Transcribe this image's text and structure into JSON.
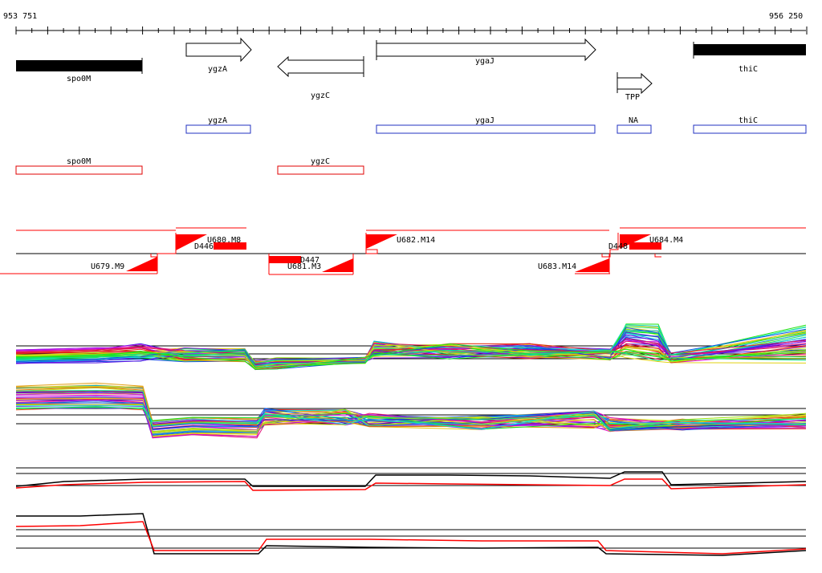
{
  "coords": {
    "start": "953 751",
    "end": "956 250"
  },
  "colors": {
    "feature_box": "#2030c0",
    "antisense_box": "#e00000",
    "segment": "#ff0000",
    "axis": "#000000"
  },
  "genes": [
    {
      "name": "spo0M",
      "kind": "solid-bar"
    },
    {
      "name": "ygzA",
      "kind": "arrow-right"
    },
    {
      "name": "ygzC",
      "kind": "arrow-left"
    },
    {
      "name": "ygaJ",
      "kind": "arrow-right"
    },
    {
      "name": "TPP",
      "kind": "arrow-right"
    },
    {
      "name": "thiC",
      "kind": "solid-bar"
    }
  ],
  "feature_boxes": [
    {
      "name": "ygzA"
    },
    {
      "name": "ygaJ"
    },
    {
      "name": "NA"
    },
    {
      "name": "thiC"
    }
  ],
  "antisense_boxes": [
    {
      "name": "spo0M"
    },
    {
      "name": "ygzC"
    }
  ],
  "segments": {
    "upper": [
      "U680.M8",
      "U682.M14",
      "U684.M4"
    ],
    "lower": [
      "U679.M9",
      "U681.M3",
      "U683.M14"
    ],
    "downs": [
      "D446",
      "D447",
      "D448"
    ]
  },
  "tracks": [
    "profiles-forward",
    "profiles-reverse",
    "summary-forward",
    "summary-reverse"
  ]
}
